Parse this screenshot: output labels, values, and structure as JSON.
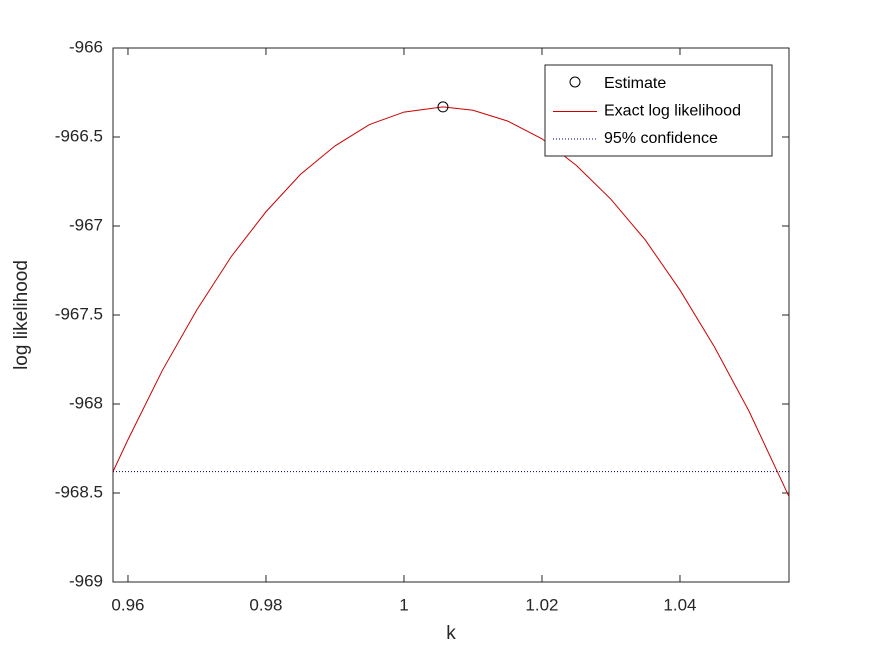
{
  "chart_data": {
    "type": "line",
    "xlabel": "k",
    "ylabel": "log likelihood",
    "xlim": [
      0.95783,
      1.0558
    ],
    "ylim": [
      -969,
      -966
    ],
    "xticks": [
      0.96,
      0.98,
      1,
      1.02,
      1.04
    ],
    "yticks": [
      -966,
      -966.5,
      -967,
      -967.5,
      -968,
      -968.5,
      -969
    ],
    "legend": "upper right",
    "series": [
      {
        "name": "Estimate",
        "kind": "marker",
        "color": "#000000",
        "x": [
          1.00565
        ],
        "values": [
          -966.331
        ]
      },
      {
        "name": "Exact log likelihood",
        "kind": "line",
        "color": "#cc0000",
        "x": [
          0.95783,
          0.96,
          0.965,
          0.97,
          0.975,
          0.98,
          0.985,
          0.99,
          0.995,
          1.0,
          1.00565,
          1.01,
          1.015,
          1.02,
          1.025,
          1.03,
          1.035,
          1.04,
          1.045,
          1.05,
          1.0558
        ],
        "values": [
          -968.38,
          -968.2,
          -967.81,
          -967.47,
          -967.17,
          -966.92,
          -966.71,
          -966.55,
          -966.43,
          -966.36,
          -966.331,
          -966.35,
          -966.41,
          -966.51,
          -966.66,
          -966.85,
          -967.08,
          -967.36,
          -967.68,
          -968.04,
          -968.52
        ]
      },
      {
        "name": "95% confidence",
        "kind": "hline",
        "color": "#000080",
        "value": -968.38
      }
    ]
  }
}
